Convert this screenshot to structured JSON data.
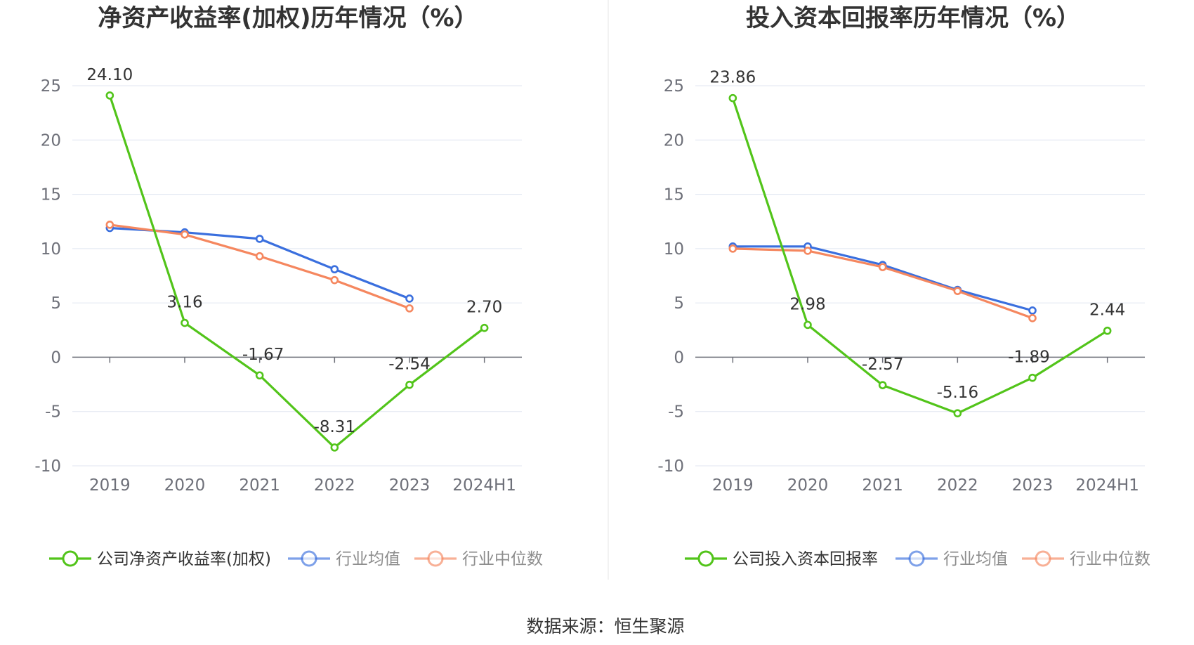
{
  "source": "数据来源：恒生聚源",
  "colors": {
    "company": "#52c41a",
    "industry_avg": "#3a6fde",
    "industry_median": "#f5875f",
    "grid": "#e0e6f1",
    "axis": "#6e7079",
    "divider": "#e6e6e6"
  },
  "chart_data": [
    {
      "type": "line",
      "title": "净资产收益率(加权)历年情况（%）",
      "categories": [
        "2019",
        "2020",
        "2021",
        "2022",
        "2023",
        "2024H1"
      ],
      "ylim": [
        -10,
        25
      ],
      "yticks": [
        "25",
        "20",
        "15",
        "10",
        "5",
        "0",
        "-5",
        "-10"
      ],
      "series": [
        {
          "name": "公司净资产收益率(加权)",
          "key": "company",
          "values": [
            24.1,
            3.16,
            -1.67,
            -8.31,
            -2.54,
            2.7
          ],
          "labels": [
            "24.10",
            "3.16",
            "-1.67",
            "-8.31",
            "-2.54",
            "2.70"
          ]
        },
        {
          "name": "行业均值",
          "key": "industry_avg",
          "values": [
            11.9,
            11.5,
            10.9,
            8.1,
            5.4,
            null
          ]
        },
        {
          "name": "行业中位数",
          "key": "industry_median",
          "values": [
            12.2,
            11.3,
            9.3,
            7.1,
            4.5,
            null
          ]
        }
      ]
    },
    {
      "type": "line",
      "title": "投入资本回报率历年情况（%）",
      "categories": [
        "2019",
        "2020",
        "2021",
        "2022",
        "2023",
        "2024H1"
      ],
      "ylim": [
        -10,
        25
      ],
      "yticks": [
        "25",
        "20",
        "15",
        "10",
        "5",
        "0",
        "-5",
        "-10"
      ],
      "series": [
        {
          "name": "公司投入资本回报率",
          "key": "company",
          "values": [
            23.86,
            2.98,
            -2.57,
            -5.16,
            -1.89,
            2.44
          ],
          "labels": [
            "23.86",
            "2.98",
            "-2.57",
            "-5.16",
            "-1.89",
            "2.44"
          ]
        },
        {
          "name": "行业均值",
          "key": "industry_avg",
          "values": [
            10.2,
            10.2,
            8.5,
            6.2,
            4.3,
            null
          ]
        },
        {
          "name": "行业中位数",
          "key": "industry_median",
          "values": [
            10.0,
            9.8,
            8.3,
            6.1,
            3.6,
            null
          ]
        }
      ]
    }
  ]
}
